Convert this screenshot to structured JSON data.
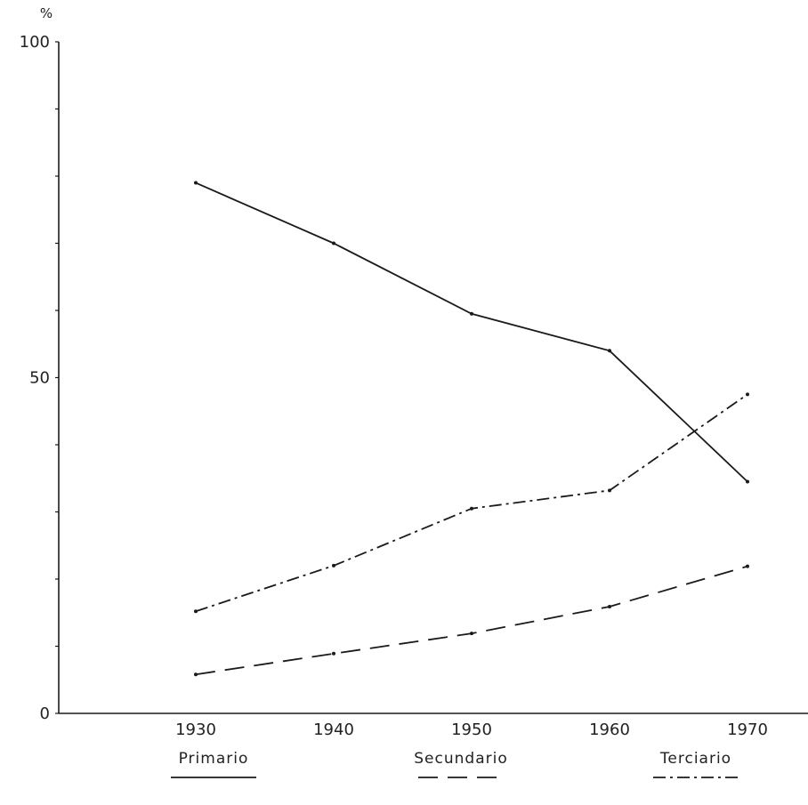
{
  "chart_data": {
    "type": "line",
    "title": "",
    "xlabel": "",
    "ylabel": "%",
    "x": [
      "1930",
      "1940",
      "1950",
      "1960",
      "1970"
    ],
    "ylim": [
      0,
      100
    ],
    "y_ticks": [
      "0",
      "50",
      "100"
    ],
    "grid": false,
    "legend_position": "bottom",
    "series": [
      {
        "name": "Primario",
        "style": "solid",
        "values": [
          79,
          70,
          59.5,
          54,
          34.5
        ]
      },
      {
        "name": "Secundario",
        "style": "dashed",
        "values": [
          5.8,
          8.9,
          11.9,
          15.9,
          21.9
        ]
      },
      {
        "name": "Terciario",
        "style": "dashdot",
        "values": [
          15.2,
          22,
          30.5,
          33.2,
          47.5
        ]
      }
    ],
    "line_color": "#1a1a1a"
  }
}
